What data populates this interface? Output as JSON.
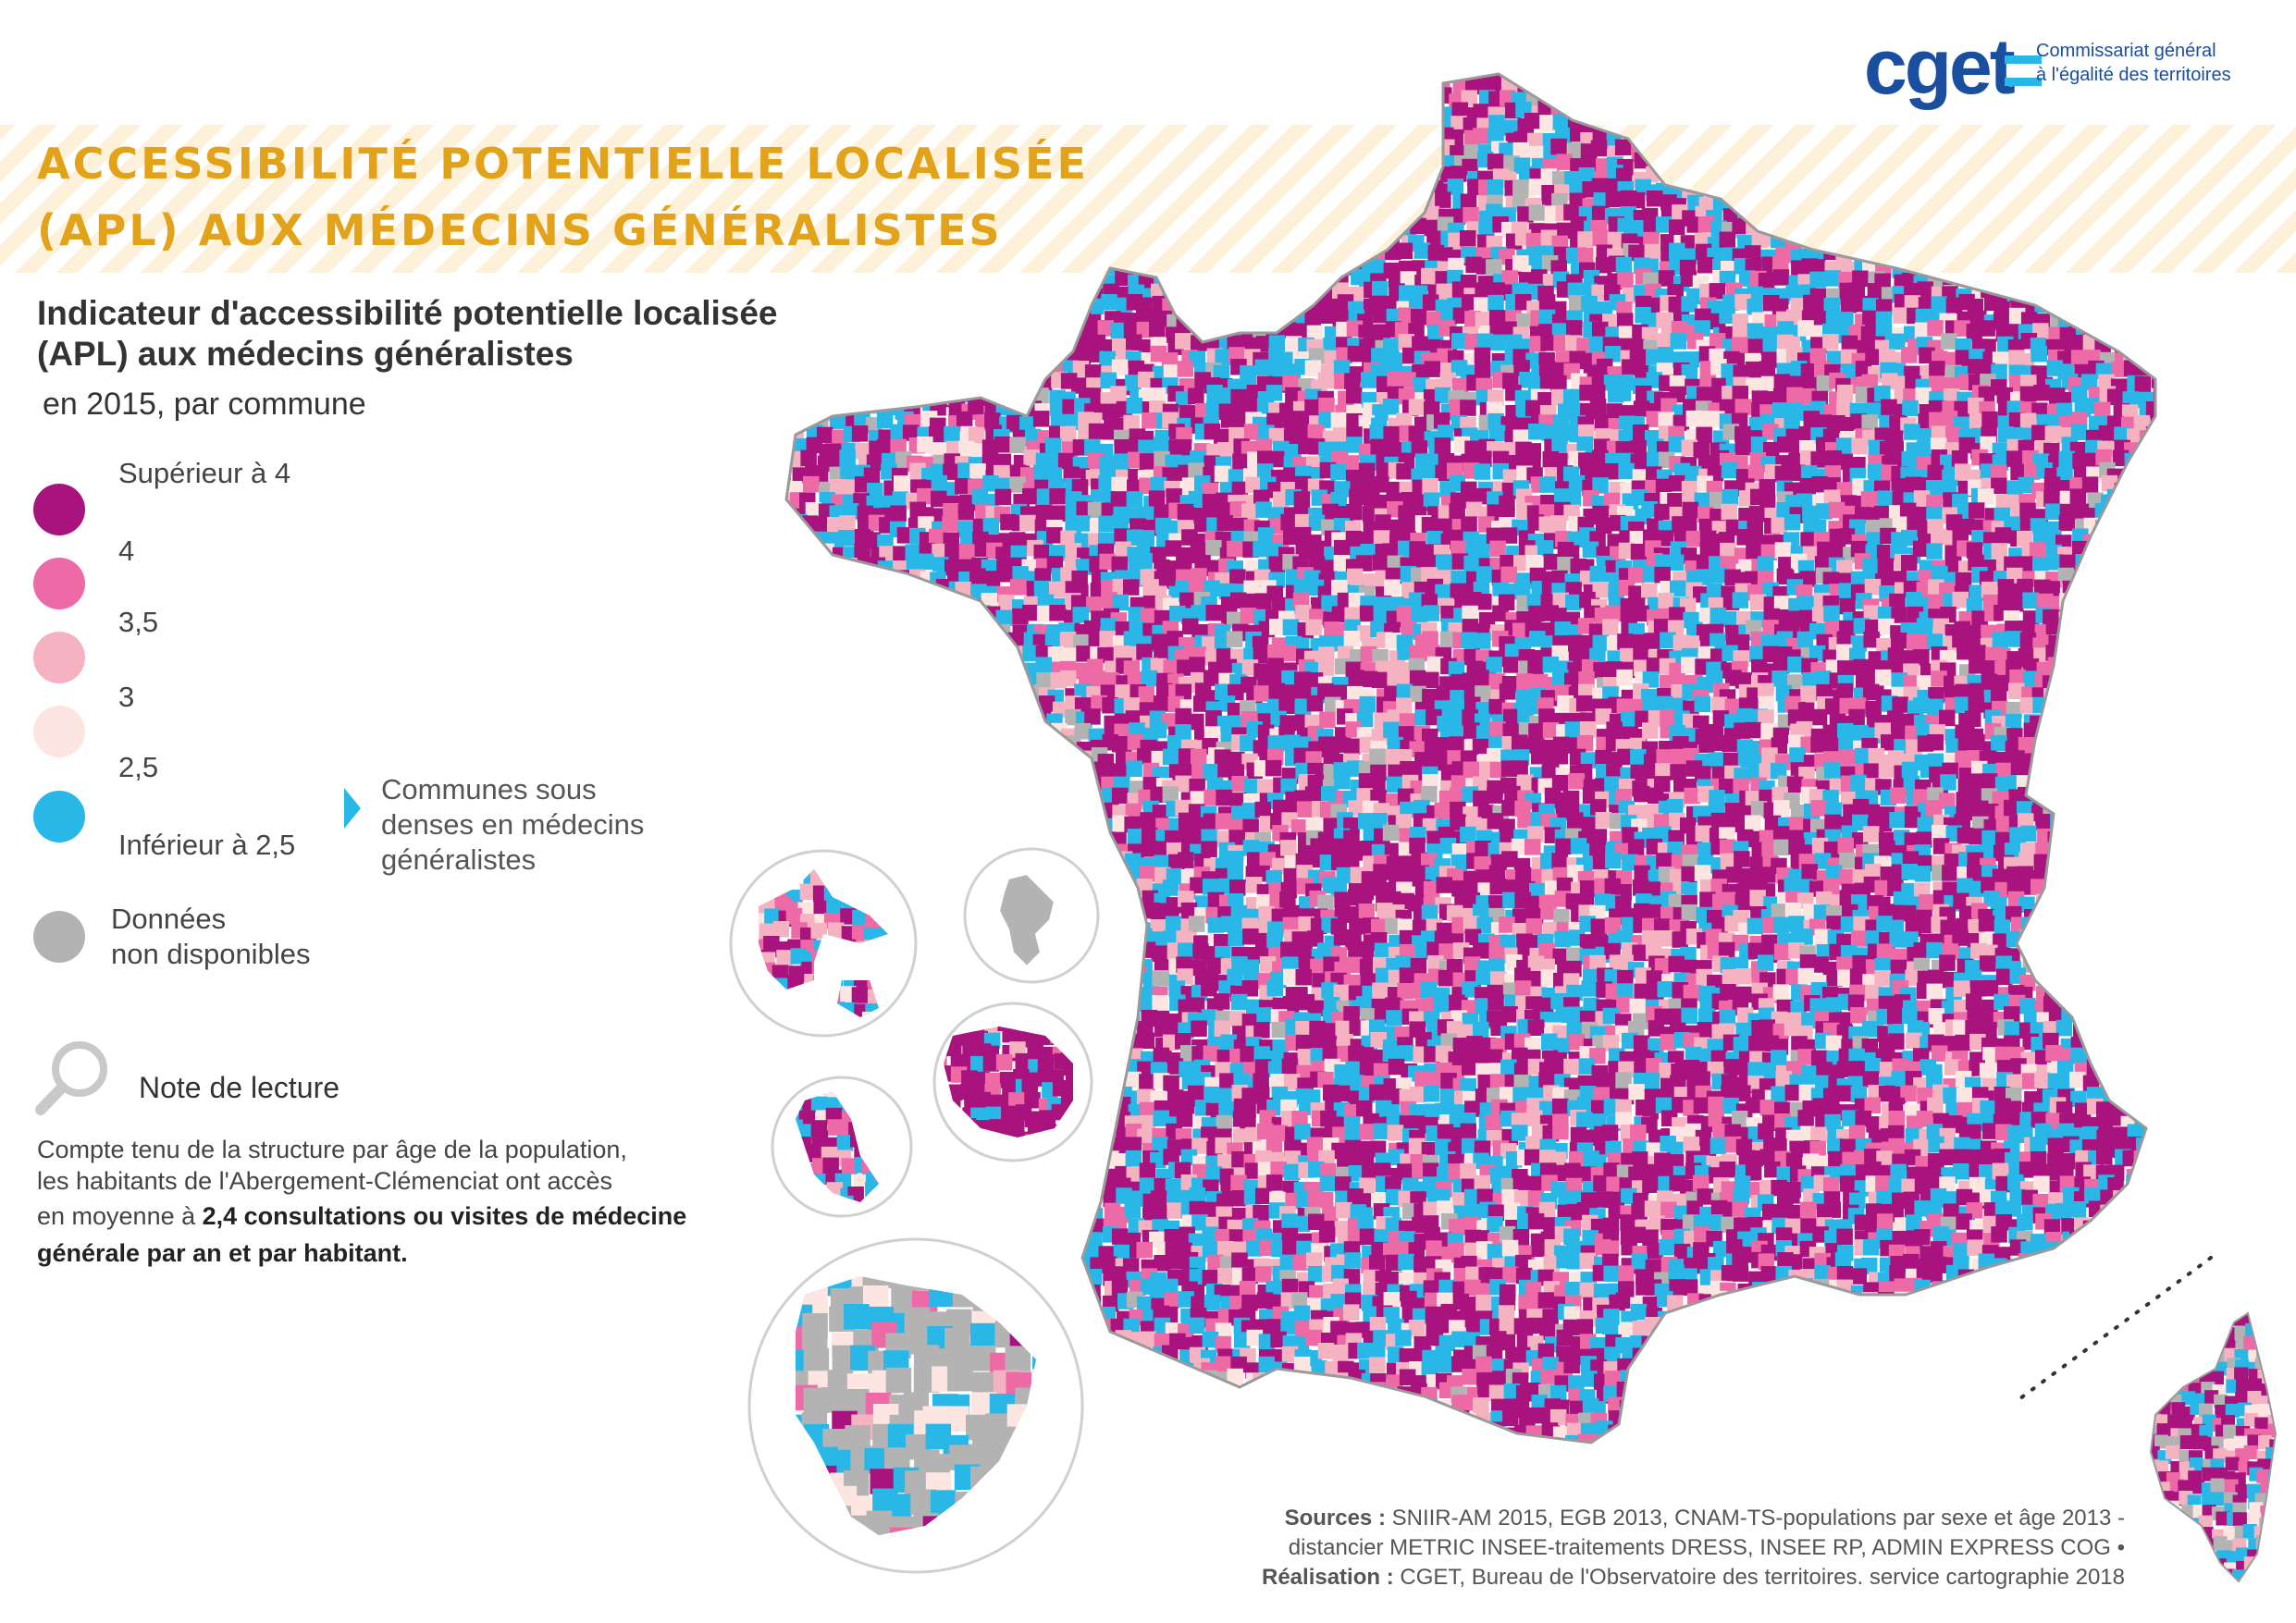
{
  "header": {
    "title_line1": "ACCESSIBILITÉ POTENTIELLE LOCALISÉE",
    "title_line2": "(APL) AUX MÉDECINS GÉNÉRALISTES"
  },
  "logo": {
    "word": "cget",
    "tagline_line1": "Commissariat général",
    "tagline_line2": "à l'égalité des territoires"
  },
  "legend": {
    "title_line1": "Indicateur d'accessibilité potentielle localisée",
    "title_line2": "(APL) aux médecins généralistes",
    "subtitle": "en 2015, par commune",
    "classes": [
      {
        "label": "Supérieur à 4",
        "color": "#a8137e"
      },
      {
        "label": "4",
        "color": "#ee6aa6"
      },
      {
        "label": "3,5",
        "color": "#f5b2c0"
      },
      {
        "label": "3",
        "color": "#fde5e1"
      },
      {
        "label": "2,5",
        "color": "#29b7e8"
      },
      {
        "label": "Inférieur à 2,5",
        "color": ""
      }
    ],
    "undersupplied": {
      "line1": "Communes sous",
      "line2": "denses en médecins",
      "line3": "généralistes",
      "marker_color": "#29b7e8"
    },
    "no_data": {
      "line1": "Données",
      "line2": "non disponibles",
      "color": "#b3b3b3"
    }
  },
  "note": {
    "icon": "magnifier-icon",
    "title": "Note de lecture",
    "line1": "Compte tenu de la structure par âge de la population,",
    "line2": "les habitants de l'Abergement-Clémenciat ont accès",
    "line3_regular": "en moyenne à ",
    "line3_bold": "2,4 consultations ou visites de médecine",
    "line4_bold": "générale par an et par habitant."
  },
  "sources": {
    "line1_bold": "Sources :",
    "line1_text": " SNIIR-AM 2015, EGB 2013, CNAM-TS-populations par sexe et âge 2013 -",
    "line2_text": "distancier METRIC INSEE-traitements DRESS, INSEE RP, ADMIN EXPRESS COG •",
    "line3_bold": "Réalisation :",
    "line3_text": " CGET, Bureau de l'Observatoire des territoires. service cartographie 2018"
  },
  "map": {
    "palette": [
      "#a8137e",
      "#ee6aa6",
      "#f5b2c0",
      "#fde5e1",
      "#29b7e8",
      "#b3b3b3"
    ]
  }
}
